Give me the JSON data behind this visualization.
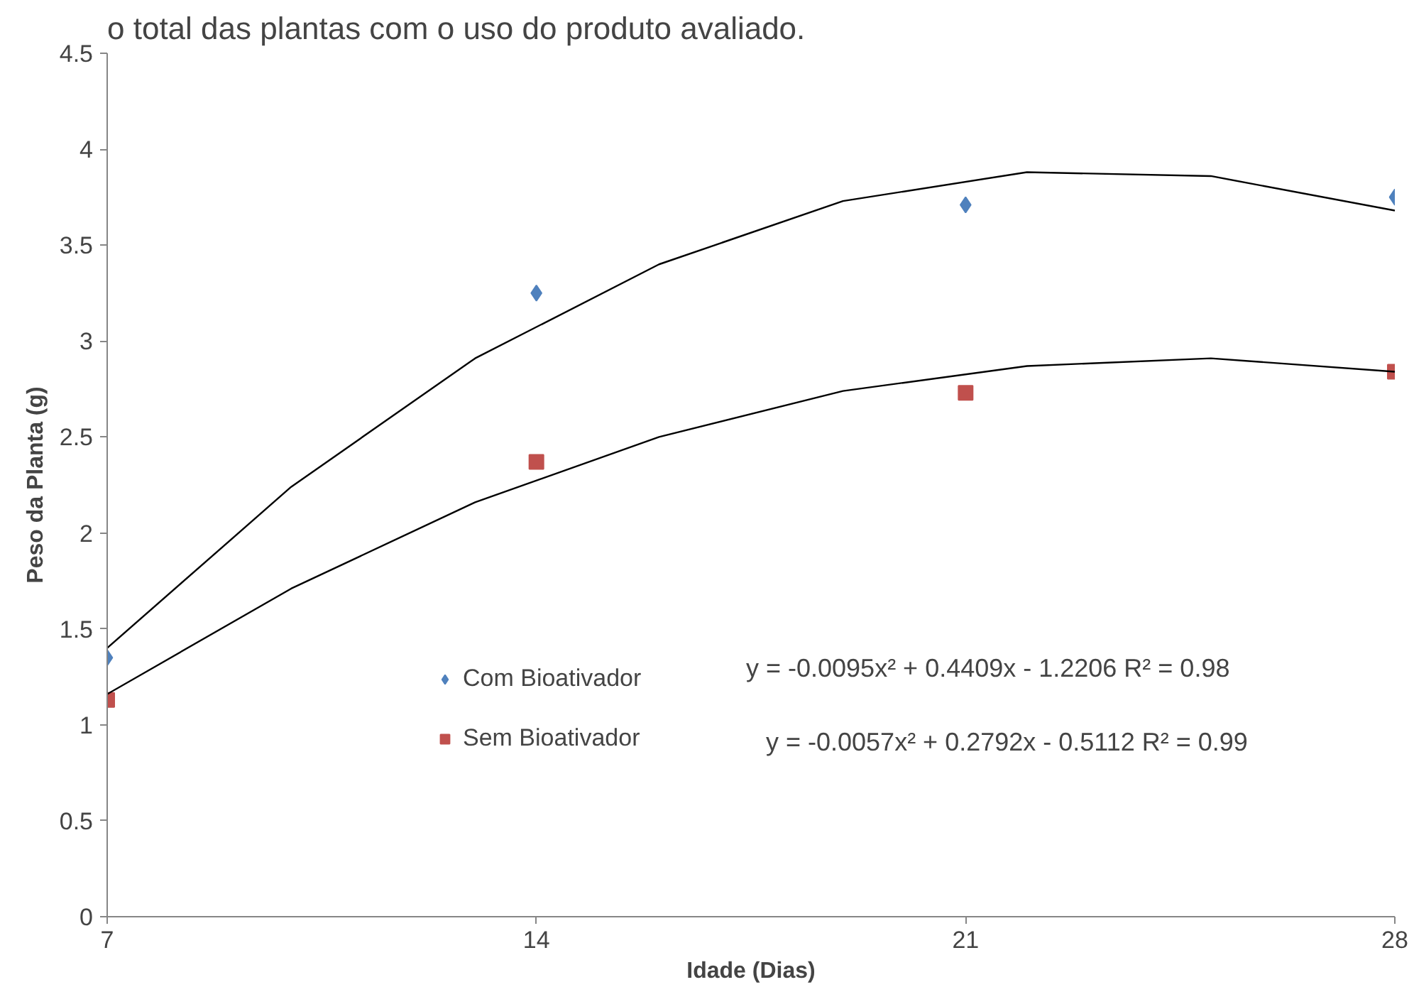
{
  "chart_data": {
    "type": "scatter",
    "title": "o total das plantas com o uso do produto avaliado.",
    "xlabel": "Idade (Dias)",
    "ylabel": "Peso da Planta (g)",
    "x": [
      7,
      14,
      21,
      28
    ],
    "series": [
      {
        "name": "Com Bioativador",
        "color": "#4f81bd",
        "marker": "diamond",
        "values": [
          1.35,
          3.25,
          3.71,
          3.75
        ]
      },
      {
        "name": "Sem Bioativador",
        "color": "#c0504d",
        "marker": "square",
        "values": [
          1.13,
          2.37,
          2.73,
          2.84
        ]
      },
      {
        "type": "line",
        "color": "#000000",
        "x": [
          7,
          10,
          13,
          16,
          19,
          22,
          25,
          28
        ],
        "values": [
          1.4,
          2.24,
          2.91,
          3.4,
          3.73,
          3.88,
          3.86,
          3.68
        ]
      },
      {
        "type": "line",
        "color": "#000000",
        "x": [
          7,
          10,
          13,
          16,
          19,
          22,
          25,
          28
        ],
        "values": [
          1.16,
          1.71,
          2.16,
          2.5,
          2.74,
          2.87,
          2.91,
          2.84
        ]
      }
    ],
    "annotations": [
      "y = -0.0095x² + 0.4409x - 1.2206    R² = 0.98",
      "y = -0.0057x² + 0.2792x - 0.5112    R² = 0.99"
    ],
    "xlim": [
      7,
      28
    ],
    "xticks": [
      7,
      14,
      21,
      28
    ],
    "ylim": [
      0,
      4.5
    ],
    "yticks": [
      0,
      0.5,
      1,
      1.5,
      2,
      2.5,
      3,
      3.5,
      4,
      4.5
    ],
    "grid": false,
    "legend": "bottom"
  }
}
